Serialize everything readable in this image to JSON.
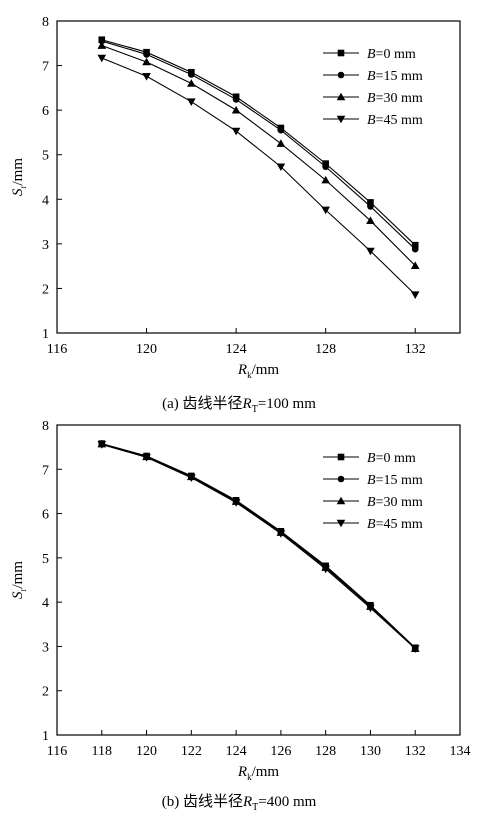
{
  "chart_data": [
    {
      "type": "line",
      "caption_prefix": "(a) 齿线半径",
      "caption_sub": "T",
      "caption_suffix": "=100 mm",
      "xlabel_var": "R",
      "xlabel_sub": "k",
      "xlabel_unit": "/mm",
      "ylabel_var": "S",
      "ylabel_sub": "r",
      "ylabel_unit": "/mm",
      "xlim": [
        116,
        134
      ],
      "ylim": [
        1,
        8
      ],
      "xticks": [
        116,
        120,
        124,
        128,
        132
      ],
      "yticks": [
        1,
        2,
        3,
        4,
        5,
        6,
        7,
        8
      ],
      "legend_position": "top-right",
      "grid": false,
      "x": [
        118,
        120,
        122,
        124,
        126,
        128,
        130,
        132
      ],
      "series": [
        {
          "name": "B=0 mm",
          "marker": "square",
          "values": [
            7.58,
            7.3,
            6.85,
            6.3,
            5.6,
            4.8,
            3.93,
            2.97
          ]
        },
        {
          "name": "B=15 mm",
          "marker": "circle",
          "values": [
            7.55,
            7.25,
            6.8,
            6.24,
            5.55,
            4.73,
            3.84,
            2.88
          ]
        },
        {
          "name": "B=30 mm",
          "marker": "triangle-up",
          "values": [
            7.45,
            7.08,
            6.6,
            6.0,
            5.25,
            4.43,
            3.52,
            2.51
          ]
        },
        {
          "name": "B=45 mm",
          "marker": "triangle-down",
          "values": [
            7.17,
            6.76,
            6.19,
            5.53,
            4.73,
            3.76,
            2.84,
            1.86
          ]
        }
      ]
    },
    {
      "type": "line",
      "caption_prefix": "(b) 齿线半径",
      "caption_sub": "T",
      "caption_suffix": "=400 mm",
      "xlabel_var": "R",
      "xlabel_sub": "k",
      "xlabel_unit": "/mm",
      "ylabel_var": "S",
      "ylabel_sub": "r",
      "ylabel_unit": "/mm",
      "xlim": [
        116,
        134
      ],
      "ylim": [
        1,
        8
      ],
      "xticks": [
        116,
        118,
        120,
        122,
        124,
        126,
        128,
        130,
        132,
        134
      ],
      "yticks": [
        1,
        2,
        3,
        4,
        5,
        6,
        7,
        8
      ],
      "legend_position": "top-right",
      "grid": false,
      "x": [
        118,
        120,
        122,
        124,
        126,
        128,
        130,
        132
      ],
      "series": [
        {
          "name": "B=0 mm",
          "marker": "square",
          "values": [
            7.58,
            7.3,
            6.85,
            6.3,
            5.6,
            4.82,
            3.93,
            2.97
          ]
        },
        {
          "name": "B=15 mm",
          "marker": "circle",
          "values": [
            7.57,
            7.29,
            6.84,
            6.28,
            5.59,
            4.8,
            3.92,
            2.96
          ]
        },
        {
          "name": "B=30 mm",
          "marker": "triangle-up",
          "values": [
            7.57,
            7.28,
            6.83,
            6.27,
            5.57,
            4.78,
            3.9,
            2.95
          ]
        },
        {
          "name": "B=45 mm",
          "marker": "triangle-down",
          "values": [
            7.56,
            7.27,
            6.81,
            6.25,
            5.55,
            4.75,
            3.87,
            2.95
          ]
        }
      ]
    }
  ]
}
